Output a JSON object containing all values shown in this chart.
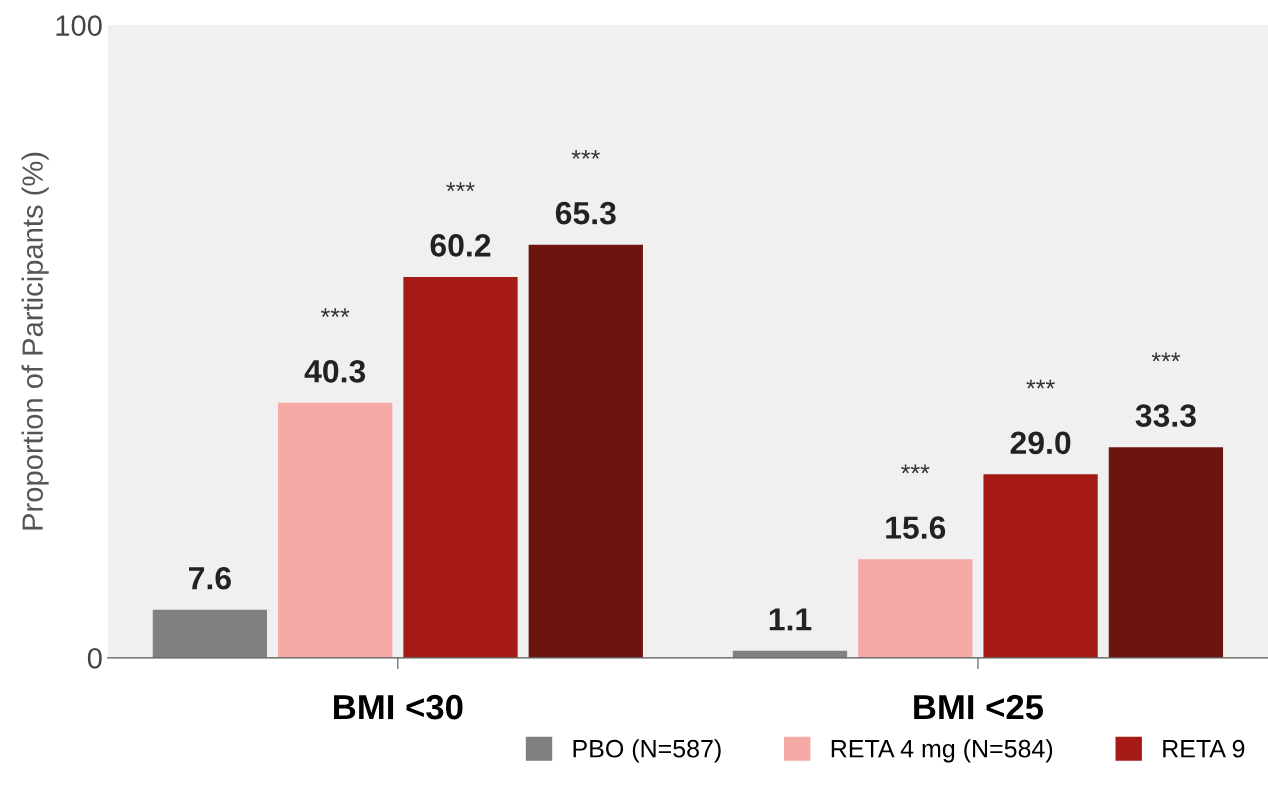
{
  "chart_data": {
    "type": "bar",
    "ylabel": "Proportion of Participants (%)",
    "categories": [
      "BMI <30",
      "BMI <25"
    ],
    "series": [
      {
        "name": "PBO (N=587)",
        "color": "#808080",
        "values": [
          7.6,
          1.1
        ],
        "value_labels": [
          "7.6",
          "1.1"
        ]
      },
      {
        "name": "RETA 4 mg (N=584)",
        "color": "#f4a9a5",
        "values": [
          40.3,
          15.6
        ],
        "value_labels": [
          "40.3",
          "15.6"
        ]
      },
      {
        "name": "RETA 9",
        "color": "#a51a14",
        "values": [
          60.2,
          29.0
        ],
        "value_labels": [
          "60.2",
          "29.0"
        ]
      },
      {
        "color": "#6e1410",
        "values": [
          65.3,
          33.3
        ],
        "value_labels": [
          "65.3",
          "33.3"
        ]
      }
    ],
    "ylim": [
      0,
      100
    ],
    "yticks": [
      0,
      100
    ],
    "legend": "bottom right",
    "grid": false,
    "annotations": [
      "***",
      "***",
      "***",
      "***",
      "***",
      "***"
    ]
  }
}
